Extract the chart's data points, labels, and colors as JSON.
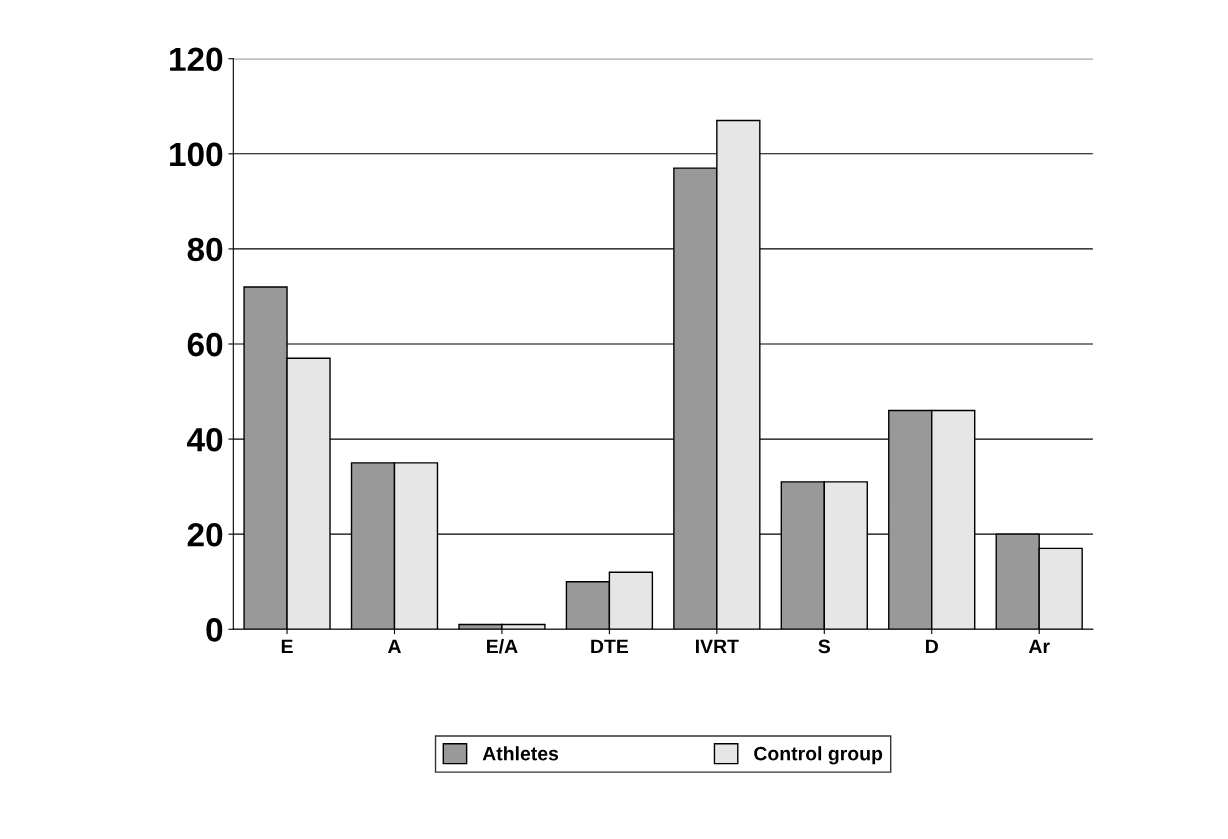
{
  "chart_data": {
    "type": "bar",
    "categories": [
      "E",
      "A",
      "E/A",
      "DTE",
      "IVRT",
      "S",
      "D",
      "Ar"
    ],
    "series": [
      {
        "name": "Athletes",
        "color": "#999999",
        "values": [
          72,
          35,
          1,
          10,
          97,
          31,
          46,
          20
        ]
      },
      {
        "name": "Control group",
        "color": "#e6e6e6",
        "values": [
          57,
          35,
          1,
          12,
          107,
          31,
          46,
          17
        ]
      }
    ],
    "ylim": [
      0,
      120
    ],
    "yticks": [
      0,
      20,
      40,
      60,
      80,
      100,
      120
    ],
    "grid": "y",
    "legend": "bottom"
  }
}
